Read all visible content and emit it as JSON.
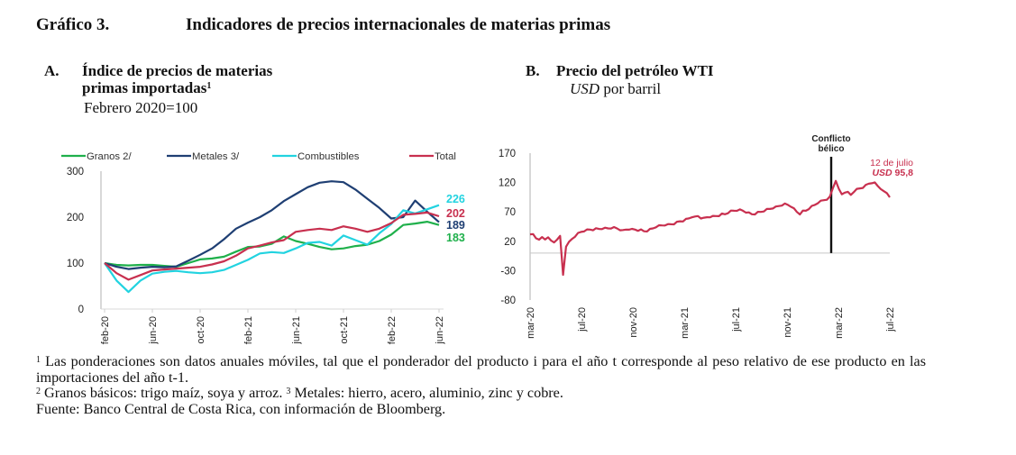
{
  "header": {
    "number": "Gráfico 3.",
    "title": "Indicadores de precios internacionales de materias primas"
  },
  "panel_a": {
    "letter": "A.",
    "title_line1": "Índice de precios de materias",
    "title_line2": "primas importadas",
    "title_sup": "1",
    "subtitle": "Febrero 2020=100"
  },
  "panel_b": {
    "letter": "B.",
    "title": "Precio del petróleo WTI",
    "subtitle_italic": "USD",
    "subtitle_rest": " por barril"
  },
  "footnotes": {
    "note1_sup": "1",
    "note1": " Las ponderaciones son datos anuales móviles, tal que el ponderador del producto i para el año t corresponde al peso relativo de ese producto en las importaciones del año t-1.",
    "note2_sup": "2",
    "note2": " Granos básicos: trigo maíz, soya y arroz. ",
    "note3_sup": "3",
    "note3": " Metales: hierro, acero, aluminio, zinc y cobre.",
    "source": "Fuente: Banco Central de Costa Rica, con información de Bloomberg."
  },
  "chart_data": [
    {
      "type": "line",
      "title": "Índice de precios de materias primas importadas",
      "ylabel": "Febrero 2020=100",
      "ylim": [
        0,
        300
      ],
      "yticks": [
        "0",
        "100",
        "200",
        "300"
      ],
      "ytick_values": [
        0,
        100,
        200,
        300
      ],
      "xtick_labels": [
        "feb-20",
        "jun-20",
        "oct-20",
        "feb-21",
        "jun-21",
        "oct-21",
        "feb-22",
        "jun-22"
      ],
      "legend_position": "top",
      "x": [
        "feb-20",
        "mar-20",
        "abr-20",
        "may-20",
        "jun-20",
        "jul-20",
        "ago-20",
        "sep-20",
        "oct-20",
        "nov-20",
        "dic-20",
        "ene-21",
        "feb-21",
        "mar-21",
        "abr-21",
        "may-21",
        "jun-21",
        "jul-21",
        "ago-21",
        "sep-21",
        "oct-21",
        "nov-21",
        "dic-21",
        "ene-22",
        "feb-22",
        "mar-22",
        "abr-22",
        "may-22",
        "jun-22"
      ],
      "series": [
        {
          "name": "Granos 2/",
          "color": "#1fb04b",
          "end_label": "183",
          "values": [
            100,
            96,
            95,
            96,
            96,
            94,
            92,
            100,
            108,
            110,
            114,
            125,
            135,
            136,
            142,
            158,
            148,
            142,
            135,
            130,
            132,
            137,
            140,
            148,
            162,
            183,
            186,
            190,
            183
          ]
        },
        {
          "name": "Metales 3/",
          "color": "#1f3f73",
          "end_label": "189",
          "values": [
            100,
            92,
            87,
            90,
            92,
            91,
            93,
            105,
            118,
            132,
            152,
            175,
            188,
            200,
            215,
            235,
            250,
            265,
            275,
            278,
            276,
            260,
            240,
            220,
            197,
            200,
            236,
            212,
            189
          ]
        },
        {
          "name": "Combustibles",
          "color": "#22d3e0",
          "end_label": "226",
          "values": [
            100,
            62,
            37,
            62,
            77,
            81,
            83,
            80,
            78,
            80,
            85,
            96,
            107,
            121,
            124,
            122,
            132,
            144,
            146,
            138,
            160,
            150,
            140,
            165,
            185,
            215,
            208,
            217,
            226
          ]
        },
        {
          "name": "Total",
          "color": "#c8304f",
          "end_label": "202",
          "values": [
            100,
            78,
            64,
            74,
            84,
            86,
            88,
            90,
            92,
            97,
            104,
            116,
            132,
            138,
            145,
            150,
            168,
            172,
            175,
            172,
            180,
            175,
            168,
            175,
            187,
            205,
            207,
            210,
            202
          ]
        }
      ]
    },
    {
      "type": "line",
      "title": "Precio del petróleo WTI",
      "ylabel": "USD por barril",
      "ylim": [
        -80,
        170
      ],
      "yticks": [
        "-80",
        "-30",
        "20",
        "70",
        "120",
        "170"
      ],
      "ytick_values": [
        -80,
        -30,
        20,
        70,
        120,
        170
      ],
      "xtick_labels": [
        "mar-20",
        "jul-20",
        "nov-20",
        "mar-21",
        "jul-21",
        "nov-21",
        "mar-22",
        "jul-22"
      ],
      "x_start": "mar-20",
      "x_end": "jul-22",
      "series": [
        {
          "name": "WTI",
          "color": "#c8304f",
          "values": [
            33,
            31,
            25,
            24,
            26,
            23,
            28,
            20,
            18,
            24,
            28,
            -37,
            12,
            18,
            24,
            29,
            33,
            36,
            38,
            39,
            40,
            40,
            41,
            41,
            42,
            42,
            42,
            43,
            43,
            42,
            40,
            38,
            40,
            41,
            40,
            40,
            39,
            39,
            37,
            38,
            40,
            42,
            45,
            46,
            47,
            48,
            48,
            49,
            50,
            52,
            54,
            55,
            57,
            59,
            62,
            61,
            63,
            60,
            59,
            61,
            62,
            62,
            63,
            64,
            66,
            66,
            69,
            71,
            72,
            73,
            73,
            72,
            70,
            68,
            66,
            67,
            69,
            70,
            72,
            74,
            75,
            77,
            78,
            80,
            82,
            83,
            82,
            80,
            75,
            70,
            67,
            71,
            72,
            76,
            79,
            82,
            86,
            88,
            90,
            92,
            95,
            110,
            124,
            108,
            100,
            104,
            103,
            99,
            105,
            108,
            110,
            112,
            115,
            118,
            120,
            119,
            114,
            110,
            104,
            102,
            96
          ]
        }
      ],
      "annotations": {
        "event_label_line1": "Conflicto",
        "event_label_line2": "bélico",
        "event_x": "feb-22",
        "last_label_line1": "12 de julio",
        "last_label_italic": "USD",
        "last_label_value": " 95,8"
      }
    }
  ]
}
